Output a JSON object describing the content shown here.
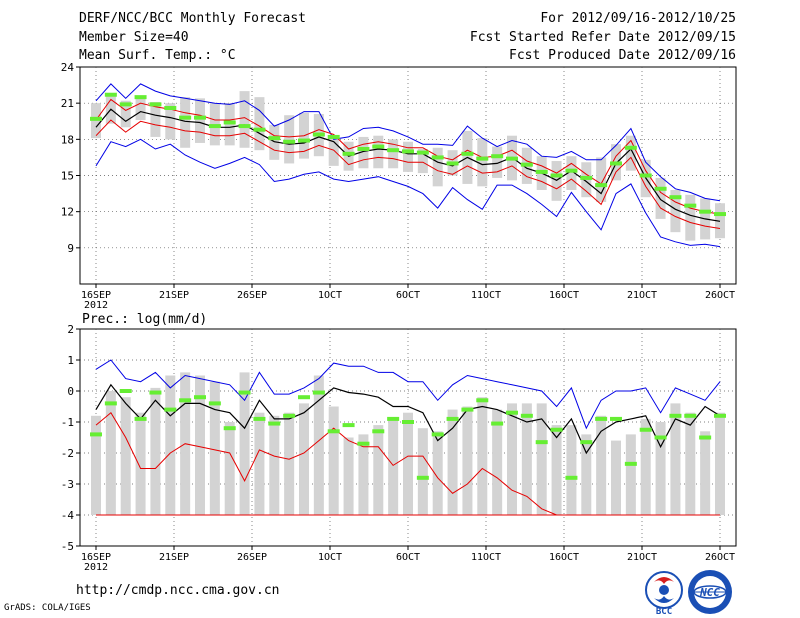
{
  "header": {
    "title": "DERF/NCC/BCC Monthly Forecast",
    "member_size": "Member Size=40",
    "variable": "Mean Surf. Temp.: °C",
    "period": "For 2012/09/16-2012/10/25",
    "started": "Fcst Started Refer Date 2012/09/15",
    "produced": "Fcst Produced Date 2012/09/16"
  },
  "footer": {
    "url": "http://cmdp.ncc.cma.gov.cn",
    "credit": "GrADS: COLA/IGES",
    "logo_bcc_text": "BCC",
    "logo_ncc_text": "NCC"
  },
  "colors": {
    "ensemble_mean": "#000000",
    "std_band": "#e60000",
    "min_max": "#0000e6",
    "climatology": "#66ee33",
    "member_range_bar": "#d3d3d3",
    "grid": "#555555"
  },
  "chart_data": [
    {
      "type": "line",
      "id": "temperature",
      "title": "Mean Surf. Temp.: °C",
      "x_day_range": [
        0,
        39
      ],
      "x_ticks": [
        {
          "day": 0,
          "label": "16SEP",
          "sub": "2012"
        },
        {
          "day": 5,
          "label": "21SEP"
        },
        {
          "day": 10,
          "label": "26SEP"
        },
        {
          "day": 15,
          "label": "1OCT"
        },
        {
          "day": 20,
          "label": "6OCT"
        },
        {
          "day": 25,
          "label": "11OCT"
        },
        {
          "day": 30,
          "label": "16OCT"
        },
        {
          "day": 35,
          "label": "21OCT"
        },
        {
          "day": 40,
          "label": "26OCT"
        }
      ],
      "ylim": [
        6,
        24
      ],
      "y_ticks": [
        9,
        12,
        15,
        18,
        21,
        24
      ],
      "series": [
        {
          "name": "ensemble_mean",
          "values": [
            19.0,
            20.5,
            19.5,
            20.3,
            20.0,
            19.8,
            19.5,
            19.4,
            19.0,
            19.0,
            19.2,
            18.5,
            17.8,
            17.6,
            17.7,
            18.2,
            17.8,
            16.6,
            17.0,
            17.2,
            17.1,
            16.8,
            16.8,
            16.1,
            15.8,
            16.5,
            15.9,
            16.0,
            16.5,
            15.6,
            15.2,
            14.6,
            15.4,
            14.5,
            13.5,
            16.0,
            17.2,
            14.8,
            13.0,
            12.2,
            11.7,
            11.4,
            11.2
          ]
        },
        {
          "name": "mean_plus_std",
          "values": [
            19.6,
            21.3,
            20.4,
            21.0,
            20.7,
            20.5,
            20.2,
            20.0,
            19.6,
            19.6,
            19.8,
            19.1,
            18.3,
            18.2,
            18.3,
            18.8,
            18.4,
            17.2,
            17.6,
            17.8,
            17.6,
            17.3,
            17.3,
            16.6,
            16.3,
            17.1,
            16.5,
            16.6,
            17.1,
            16.2,
            15.8,
            15.2,
            16.0,
            15.1,
            14.3,
            16.6,
            17.9,
            15.4,
            13.6,
            12.8,
            12.3,
            12.0,
            11.8
          ]
        },
        {
          "name": "mean_minus_std",
          "values": [
            18.3,
            19.6,
            18.6,
            19.5,
            19.2,
            19.0,
            18.7,
            18.6,
            18.3,
            18.3,
            18.5,
            17.8,
            17.1,
            16.9,
            17.0,
            17.5,
            17.1,
            15.9,
            16.3,
            16.5,
            16.4,
            16.1,
            16.1,
            15.4,
            15.1,
            15.8,
            15.2,
            15.3,
            15.8,
            14.9,
            14.5,
            13.9,
            14.7,
            13.7,
            12.6,
            15.3,
            16.5,
            14.1,
            12.3,
            11.6,
            11.1,
            10.8,
            10.6
          ]
        },
        {
          "name": "member_max",
          "values": [
            21.2,
            22.6,
            21.4,
            22.6,
            22.0,
            21.6,
            21.4,
            21.2,
            21.0,
            20.9,
            21.2,
            20.4,
            19.1,
            19.6,
            20.3,
            20.3,
            18.0,
            18.2,
            18.9,
            19.0,
            18.7,
            18.2,
            17.6,
            17.6,
            17.5,
            19.1,
            18.1,
            17.4,
            17.9,
            17.6,
            16.6,
            16.5,
            17.0,
            16.3,
            16.3,
            17.5,
            18.9,
            16.1,
            14.9,
            13.9,
            13.6,
            13.1,
            12.9
          ]
        },
        {
          "name": "member_min",
          "values": [
            15.8,
            17.8,
            17.4,
            18.0,
            17.2,
            17.6,
            16.7,
            16.1,
            15.6,
            16.0,
            16.5,
            15.9,
            14.5,
            14.7,
            15.1,
            15.3,
            14.7,
            14.5,
            14.7,
            14.9,
            14.5,
            14.1,
            13.5,
            12.3,
            14.0,
            13.0,
            12.2,
            14.2,
            14.2,
            13.5,
            12.6,
            11.6,
            13.6,
            12.0,
            10.5,
            13.5,
            14.3,
            11.9,
            9.9,
            9.5,
            9.2,
            9.3,
            9.1
          ]
        },
        {
          "name": "climatology",
          "values": [
            19.7,
            21.7,
            20.9,
            21.5,
            20.9,
            20.6,
            19.8,
            19.8,
            19.1,
            19.4,
            19.1,
            18.8,
            18.1,
            17.8,
            17.9,
            18.4,
            18.2,
            16.8,
            17.2,
            17.4,
            17.1,
            17.0,
            16.9,
            16.5,
            16.0,
            16.8,
            16.4,
            16.6,
            16.4,
            15.9,
            15.3,
            15.0,
            15.4,
            14.8,
            14.2,
            16.0,
            17.3,
            15.0,
            13.9,
            13.2,
            12.5,
            12.0,
            11.8
          ]
        },
        {
          "name": "member_bar_top",
          "values": [
            21.0,
            21.8,
            21.2,
            21.6,
            21.1,
            21.0,
            21.5,
            21.4,
            21.0,
            21.0,
            22.0,
            21.5,
            19.2,
            20.0,
            20.2,
            20.1,
            18.2,
            17.8,
            18.2,
            18.3,
            18.0,
            17.8,
            17.2,
            17.3,
            17.1,
            18.7,
            18.1,
            17.4,
            18.3,
            17.3,
            16.6,
            16.2,
            16.6,
            16.1,
            16.5,
            17.6,
            18.3,
            16.3,
            14.8,
            13.8,
            13.4,
            13.1,
            12.7
          ]
        },
        {
          "name": "member_bar_bottom",
          "values": [
            18.1,
            19.3,
            19.0,
            19.6,
            18.2,
            18.0,
            17.3,
            17.7,
            17.5,
            17.5,
            17.3,
            17.1,
            16.3,
            16.0,
            16.4,
            16.6,
            15.8,
            15.4,
            15.6,
            15.6,
            15.6,
            15.3,
            15.2,
            14.1,
            15.0,
            14.3,
            14.1,
            14.8,
            14.6,
            14.3,
            13.8,
            12.9,
            13.8,
            13.2,
            12.8,
            14.6,
            15.4,
            13.2,
            11.4,
            10.3,
            9.6,
            9.7,
            9.8
          ]
        }
      ]
    },
    {
      "type": "line",
      "id": "precipitation",
      "title": "Prec.: log(mm/d)",
      "x_day_range": [
        0,
        39
      ],
      "x_ticks": [
        {
          "day": 0,
          "label": "16SEP",
          "sub": "2012"
        },
        {
          "day": 5,
          "label": "21SEP"
        },
        {
          "day": 10,
          "label": "26SEP"
        },
        {
          "day": 15,
          "label": "1OCT"
        },
        {
          "day": 20,
          "label": "6OCT"
        },
        {
          "day": 25,
          "label": "11OCT"
        },
        {
          "day": 30,
          "label": "16OCT"
        },
        {
          "day": 35,
          "label": "21OCT"
        },
        {
          "day": 40,
          "label": "26OCT"
        }
      ],
      "ylim": [
        -5,
        2
      ],
      "y_ticks": [
        -5,
        -4,
        -3,
        -2,
        -1,
        0,
        1,
        2
      ],
      "series": [
        {
          "name": "ensemble_mean",
          "values": [
            -0.6,
            0.2,
            -0.4,
            -0.9,
            -0.3,
            -0.8,
            -0.4,
            -0.4,
            -0.6,
            -0.7,
            -1.2,
            -0.3,
            -0.9,
            -0.9,
            -0.7,
            -0.3,
            0.1,
            -0.05,
            -0.1,
            -0.2,
            -0.5,
            -0.5,
            -0.7,
            -1.6,
            -1.2,
            -0.6,
            -0.5,
            -0.6,
            -0.8,
            -1.0,
            -0.9,
            -1.5,
            -0.9,
            -2.0,
            -1.3,
            -1.0,
            -0.9,
            -0.8,
            -1.8,
            -0.9,
            -1.1,
            -0.5,
            -0.8
          ]
        },
        {
          "name": "mean_plus_std",
          "values": [
            0.7,
            1.0,
            0.4,
            0.3,
            0.6,
            0.1,
            0.5,
            0.4,
            0.3,
            0.2,
            -0.3,
            0.6,
            -0.1,
            -0.1,
            0.1,
            0.4,
            0.9,
            0.8,
            0.8,
            0.6,
            0.6,
            0.3,
            0.3,
            -0.3,
            0.2,
            0.5,
            0.4,
            0.3,
            0.2,
            0.1,
            0.0,
            -0.5,
            0.1,
            -1.2,
            -0.3,
            0.0,
            0.0,
            0.1,
            -0.7,
            0.1,
            -0.1,
            -0.3,
            0.3
          ]
        },
        {
          "name": "mean_minus_std",
          "values": [
            -1.1,
            -0.7,
            -1.5,
            -2.5,
            -2.5,
            -2.0,
            -1.7,
            -1.8,
            -1.9,
            -2.0,
            -2.9,
            -1.9,
            -2.1,
            -2.2,
            -2.0,
            -1.6,
            -1.2,
            -1.6,
            -1.8,
            -1.8,
            -2.4,
            -2.1,
            -2.1,
            -2.8,
            -3.3,
            -3.0,
            -2.5,
            -2.8,
            -3.2,
            -3.4,
            -3.8,
            -4.0,
            -4.0,
            -4.0,
            -4.0,
            -4.0,
            -4.0,
            -4.0,
            -4.0,
            -4.0,
            -4.0,
            -4.0,
            -4.0
          ]
        },
        {
          "name": "member_min",
          "values": [
            -4.0,
            -4.0,
            -4.0,
            -4.0,
            -4.0,
            -4.0,
            -4.0,
            -4.0,
            -4.0,
            -4.0,
            -4.0,
            -4.0,
            -4.0,
            -4.0,
            -4.0,
            -4.0,
            -4.0,
            -4.0,
            -4.0,
            -4.0,
            -4.0,
            -4.0,
            -4.0,
            -4.0,
            -4.0,
            -4.0,
            -4.0,
            -4.0,
            -4.0,
            -4.0,
            -4.0,
            -4.0,
            -4.0,
            -4.0,
            -4.0,
            -4.0,
            -4.0,
            -4.0,
            -4.0,
            -4.0,
            -4.0,
            -4.0,
            -4.0
          ]
        },
        {
          "name": "climatology",
          "values": [
            -1.4,
            -0.4,
            0.0,
            -0.9,
            -0.05,
            -0.6,
            -0.3,
            -0.2,
            -0.4,
            -1.2,
            -0.05,
            -0.9,
            -1.05,
            -0.8,
            -0.2,
            -0.05,
            -1.3,
            -1.1,
            -1.7,
            -1.3,
            -0.9,
            -1.0,
            -2.8,
            -1.4,
            -0.9,
            -0.6,
            -0.3,
            -1.05,
            -0.7,
            -0.8,
            -1.65,
            -1.25,
            -2.8,
            -1.65,
            -0.9,
            -0.9,
            -2.35,
            -1.25,
            -1.5,
            -0.8,
            -0.8,
            -1.5,
            -0.8
          ]
        },
        {
          "name": "member_bar_top",
          "values": [
            -0.8,
            0.0,
            -0.2,
            -0.7,
            0.1,
            0.5,
            0.6,
            0.5,
            0.3,
            -1.0,
            0.6,
            -0.7,
            -0.8,
            -0.7,
            -0.4,
            0.5,
            -0.5,
            -1.5,
            -1.4,
            -1.1,
            -0.9,
            -0.7,
            -1.2,
            -1.3,
            -0.6,
            -0.5,
            -0.2,
            -0.6,
            -0.4,
            -0.4,
            -0.4,
            -1.1,
            -1.1,
            -1.4,
            -0.8,
            -1.6,
            -1.4,
            -0.9,
            -1.0,
            -0.4,
            -0.7,
            -1.3,
            -0.7
          ]
        },
        {
          "name": "member_bar_bottom",
          "values": [
            -4.0,
            -4.0,
            -4.0,
            -4.0,
            -4.0,
            -4.0,
            -4.0,
            -4.0,
            -4.0,
            -4.0,
            -4.0,
            -4.0,
            -4.0,
            -4.0,
            -4.0,
            -4.0,
            -4.0,
            -4.0,
            -4.0,
            -4.0,
            -4.0,
            -4.0,
            -4.0,
            -4.0,
            -4.0,
            -4.0,
            -4.0,
            -4.0,
            -4.0,
            -4.0,
            -4.0,
            -4.0,
            -4.0,
            -4.0,
            -4.0,
            -4.0,
            -4.0,
            -4.0,
            -4.0,
            -4.0,
            -4.0,
            -4.0,
            -4.0
          ]
        }
      ]
    }
  ]
}
